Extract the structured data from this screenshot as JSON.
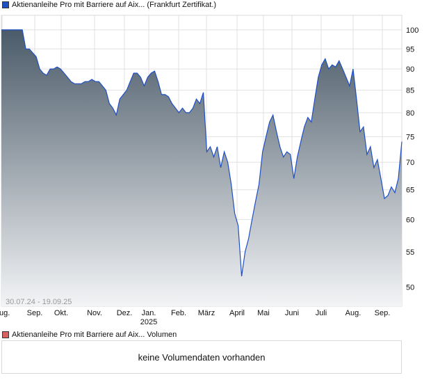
{
  "chart_data": {
    "type": "area",
    "title": "Aktienanleihe Pro mit Barriere auf Aix... (Frankfurt Zertifikat.)",
    "range_label": "30.07.24 - 19.09.25",
    "y_scale": "log",
    "ylim": [
      47.5,
      104
    ],
    "y_ticks": [
      100,
      95,
      90,
      85,
      80,
      75,
      70,
      65,
      60,
      55,
      50
    ],
    "x_ticks": [
      "Aug.",
      "Sep.",
      "Okt.",
      "Nov.",
      "Dez.",
      "Jan.",
      "Feb.",
      "März",
      "April",
      "Mai",
      "Juni",
      "Juli",
      "Aug.",
      "Sep."
    ],
    "x_tick_sub": {
      "Jan.": "2025"
    },
    "grid": true,
    "colors": {
      "line": "#1f4fc4",
      "fill_top": "#4b5b69",
      "fill_bottom": "#f3f4f6",
      "series_swatch": "#1f4fc4",
      "volume_swatch": "#d96060"
    },
    "values": [
      100,
      100,
      100,
      100,
      100,
      100,
      100,
      95,
      95,
      94,
      93,
      90,
      89,
      88.5,
      90,
      90,
      90.5,
      90,
      89,
      88,
      87,
      86.5,
      86.5,
      86.5,
      87,
      87,
      87.5,
      87,
      87,
      86,
      85,
      82,
      81,
      79.5,
      83,
      84,
      85,
      87,
      89,
      89,
      88,
      86,
      88,
      89,
      89.5,
      87,
      84,
      84,
      83.5,
      82,
      81,
      80,
      81,
      80,
      80,
      81,
      83,
      82,
      84.5,
      72,
      73,
      71,
      73,
      69,
      72,
      70,
      66,
      61,
      59,
      51.5,
      55,
      57,
      60,
      63,
      66,
      72,
      75,
      78,
      79.5,
      76,
      73,
      71,
      72,
      71.5,
      67,
      71,
      74,
      77,
      79,
      78,
      83,
      88,
      91,
      92.5,
      90,
      91,
      90.5,
      92,
      90,
      88,
      86,
      90,
      83,
      76,
      77,
      71.5,
      73,
      69,
      70.5,
      67,
      63.5,
      64,
      65.5,
      64.5,
      67,
      74
    ]
  },
  "volume": {
    "legend": "Aktienanleihe Pro mit Barriere auf Aix... Volumen",
    "message": "keine Volumendaten vorhanden"
  }
}
